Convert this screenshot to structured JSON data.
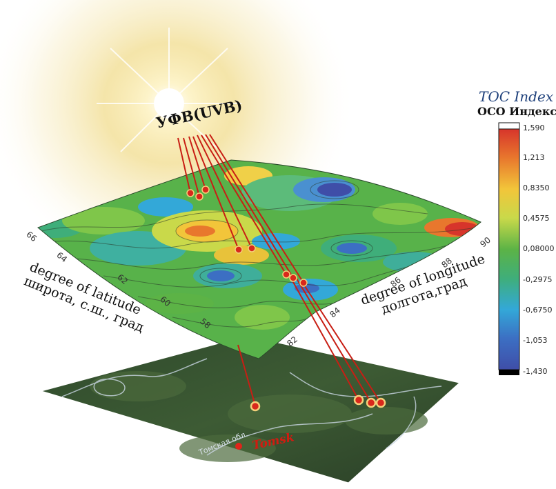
{
  "uvb_label": "УФВ(UVB)",
  "latitude_label": {
    "en": "degree of latitude",
    "ru": "широта, с.ш., град"
  },
  "longitude_label": {
    "en": "degree of longitude",
    "ru": "долгота,град"
  },
  "latitude_ticks": [
    "66",
    "64",
    "62",
    "60",
    "58"
  ],
  "longitude_ticks": [
    "82",
    "84",
    "86",
    "88",
    "90"
  ],
  "colorbar": {
    "title_en": "TOC Index",
    "title_ru": "ОСО Индекс",
    "ticks": [
      "1,590",
      "1,213",
      "0,8350",
      "0,4575",
      "0,08000",
      "-0,2975",
      "-0,6750",
      "-1,053",
      "-1,430"
    ],
    "range": [
      -1.43,
      1.59
    ],
    "colors": [
      "#d7352b",
      "#e8772d",
      "#f2c53a",
      "#c9d94a",
      "#5cb346",
      "#3fae7a",
      "#33a8d8",
      "#3c6fc3",
      "#3f4ea8"
    ]
  },
  "map": {
    "city_label": "Tomsk"
  },
  "colors": {
    "ray": "#c81e14",
    "marker": "#d8281c",
    "marker_ring": "#f3d07a"
  }
}
